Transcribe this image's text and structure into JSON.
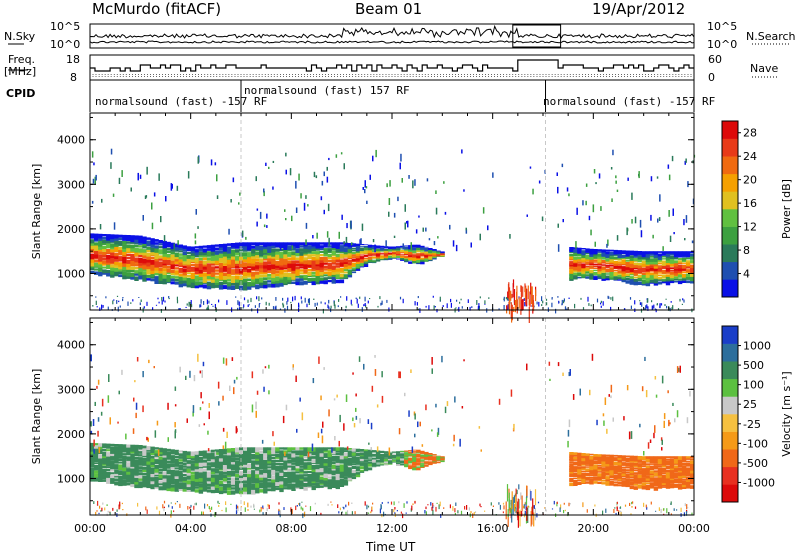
{
  "header": {
    "station": "McMurdo (fitACF)",
    "beam": "Beam 01",
    "date": "19/Apr/2012"
  },
  "params": {
    "nsky_label": "N.Sky",
    "nsearch_label": "N.Search",
    "freq_label_line1": "Freq.",
    "freq_label_line2": "[MHz]",
    "nave_label": "Nave",
    "cpid_label": "CPID",
    "noise_ticks_left": [
      "10^5",
      "10^0"
    ],
    "noise_ticks_right": [
      "10^5",
      "10^0"
    ],
    "freq_ticks": [
      "18",
      "8"
    ],
    "nave_ticks": [
      "60",
      "0"
    ],
    "cpid_segments": [
      {
        "start_hour": 0.0,
        "label": "normalsound (fast) -157 RF"
      },
      {
        "start_hour": 6.0,
        "label": "normalsound (fast) 157 RF"
      },
      {
        "start_hour": 18.1,
        "label": "normalsound (fast) -157 RF"
      }
    ]
  },
  "time_axis": {
    "label": "Time UT",
    "ticks": [
      "00:00",
      "04:00",
      "08:00",
      "12:00",
      "16:00",
      "20:00",
      "00:00"
    ]
  },
  "chart_data": [
    {
      "type": "heatmap",
      "name": "power",
      "xlabel": "Time UT",
      "ylabel": "Slant Range [km]",
      "xlim_hours": [
        0,
        24
      ],
      "ylim": [
        180,
        4600
      ],
      "yticks": [
        "1000",
        "2000",
        "3000",
        "4000"
      ],
      "colorbar": {
        "label": "Power [dB]",
        "ticks": [
          "4",
          "8",
          "12",
          "16",
          "20",
          "24",
          "28"
        ],
        "range": [
          0,
          30
        ],
        "colors": [
          "#0a10e6",
          "#1f4fb0",
          "#2a7a5a",
          "#3ca040",
          "#60c040",
          "#e0c020",
          "#f5a000",
          "#f06a10",
          "#e83a18",
          "#dd0a0a"
        ]
      },
      "echo_band": {
        "hours": [
          0.0,
          2.0,
          4.0,
          6.0,
          8.0,
          10.0,
          11.0,
          12.0,
          13.0,
          14.0,
          15.0,
          16.0,
          17.0,
          18.0,
          19.0,
          20.0,
          22.0,
          24.0
        ],
        "lower_km": [
          1000,
          850,
          700,
          650,
          750,
          800,
          1200,
          1350,
          1200,
          1400,
          null,
          null,
          null,
          null,
          850,
          900,
          750,
          800
        ],
        "upper_km": [
          1900,
          1850,
          1600,
          1700,
          1700,
          1700,
          1650,
          1600,
          1650,
          1500,
          null,
          null,
          null,
          null,
          1600,
          1550,
          1500,
          1500
        ]
      }
    },
    {
      "type": "heatmap",
      "name": "velocity",
      "xlabel": "Time UT",
      "ylabel": "Slant Range [km]",
      "xlim_hours": [
        0,
        24
      ],
      "ylim": [
        180,
        4600
      ],
      "yticks": [
        "1000",
        "2000",
        "3000",
        "4000"
      ],
      "colorbar": {
        "label": "Velocity [m s⁻¹]",
        "ticks": [
          "1000",
          "500",
          "100",
          "25",
          "-25",
          "-100",
          "-500",
          "-1000"
        ],
        "colors": [
          "#1a3ec8",
          "#2c6e9c",
          "#3a8a5a",
          "#5cc040",
          "#c8c8c8",
          "#f5c040",
          "#f59a18",
          "#f06818",
          "#e83020",
          "#dd0a0a"
        ]
      },
      "echo_band": {
        "hours": [
          0.0,
          2.0,
          4.0,
          6.0,
          8.0,
          10.0,
          11.0,
          12.0,
          13.0,
          14.0,
          15.0,
          16.0,
          17.0,
          18.0,
          19.0,
          20.0,
          22.0,
          24.0
        ],
        "lower_km": [
          950,
          800,
          700,
          650,
          750,
          800,
          1200,
          1350,
          1200,
          1400,
          null,
          null,
          null,
          null,
          850,
          900,
          750,
          800
        ],
        "upper_km": [
          1800,
          1750,
          1600,
          1700,
          1700,
          1700,
          1650,
          1600,
          1650,
          1500,
          null,
          null,
          null,
          null,
          1600,
          1550,
          1500,
          1500
        ]
      }
    }
  ]
}
